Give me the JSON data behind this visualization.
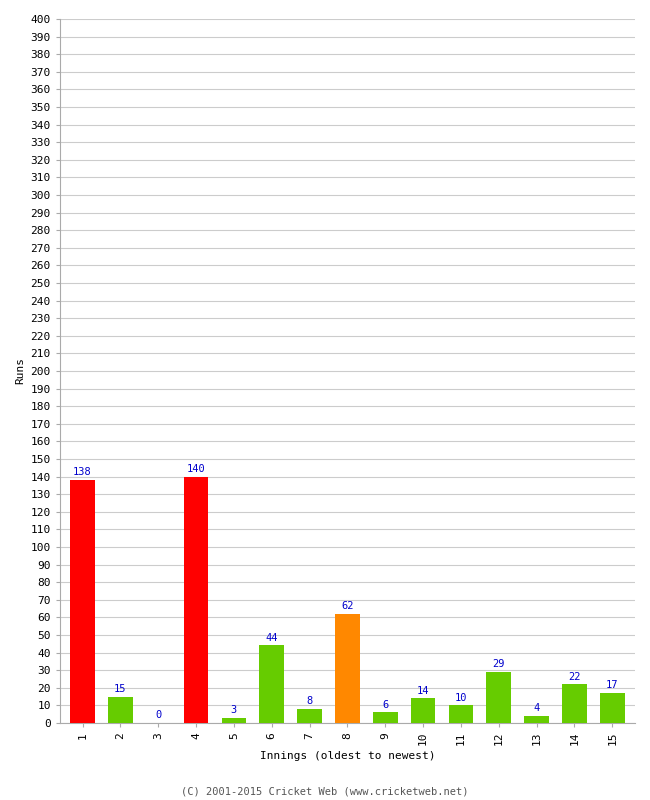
{
  "xlabel": "Innings (oldest to newest)",
  "ylabel": "Runs",
  "categories": [
    "1",
    "2",
    "3",
    "4",
    "5",
    "6",
    "7",
    "8",
    "9",
    "10",
    "11",
    "12",
    "13",
    "14",
    "15"
  ],
  "values": [
    138,
    15,
    0,
    140,
    3,
    44,
    8,
    62,
    6,
    14,
    10,
    29,
    4,
    22,
    17
  ],
  "bar_colors": [
    "#ff0000",
    "#66cc00",
    "#66cc00",
    "#ff0000",
    "#66cc00",
    "#66cc00",
    "#66cc00",
    "#ff8800",
    "#66cc00",
    "#66cc00",
    "#66cc00",
    "#66cc00",
    "#66cc00",
    "#66cc00",
    "#66cc00"
  ],
  "ylim": [
    0,
    400
  ],
  "yticks": [
    0,
    10,
    20,
    30,
    40,
    50,
    60,
    70,
    80,
    90,
    100,
    110,
    120,
    130,
    140,
    150,
    160,
    170,
    180,
    190,
    200,
    210,
    220,
    230,
    240,
    250,
    260,
    270,
    280,
    290,
    300,
    310,
    320,
    330,
    340,
    350,
    360,
    370,
    380,
    390,
    400
  ],
  "label_color": "#0000cc",
  "label_fontsize": 7.5,
  "background_color": "#ffffff",
  "grid_color": "#cccccc",
  "footer": "(C) 2001-2015 Cricket Web (www.cricketweb.net)",
  "tick_fontsize": 8,
  "xlabel_fontsize": 8,
  "ylabel_fontsize": 8
}
